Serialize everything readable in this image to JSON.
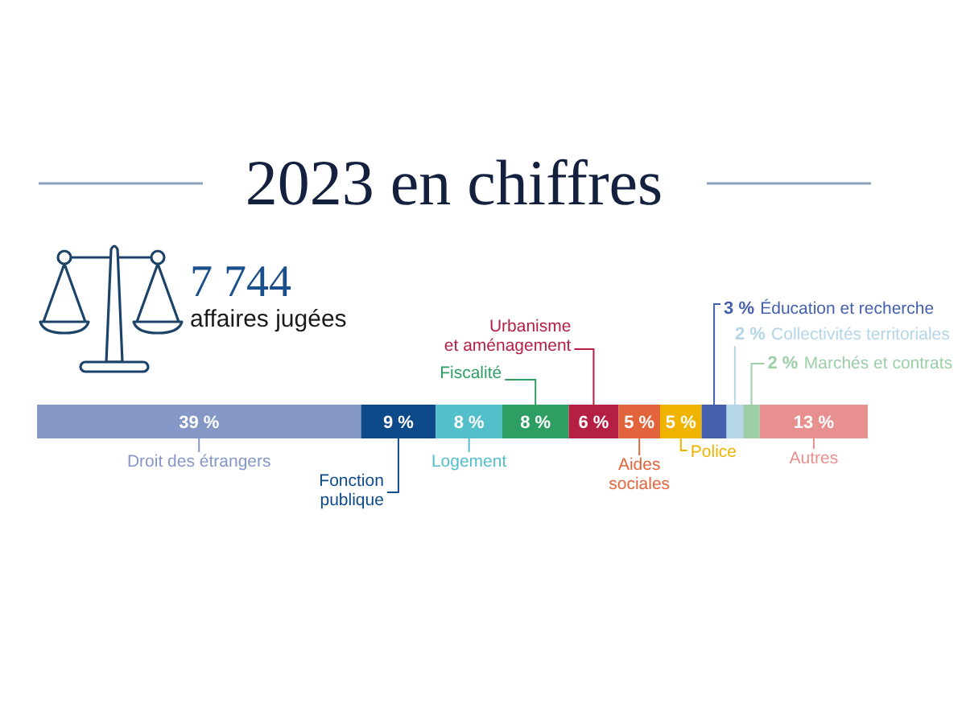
{
  "chart_data": {
    "type": "bar",
    "orientation": "horizontal",
    "stacked": true,
    "title": "2023 en chiffres",
    "annotations": [
      "7 744",
      "affaires jugées"
    ],
    "categories": [
      null
    ],
    "xlim": [
      0,
      100
    ],
    "series": [
      {
        "name": "Droit des étrangers",
        "color": "#8597c7",
        "values": [
          39
        ],
        "value_labels": [
          "39 %"
        ]
      },
      {
        "name": "Fonction publique",
        "color": "#0d4a8a",
        "values": [
          9
        ],
        "value_labels": [
          "9 %"
        ]
      },
      {
        "name": "Logement",
        "color": "#52bfca",
        "values": [
          8
        ],
        "value_labels": [
          "8 %"
        ]
      },
      {
        "name": "Fiscalité",
        "color": "#2e9e62",
        "values": [
          8
        ],
        "value_labels": [
          "8 %"
        ]
      },
      {
        "name": "Urbanisme et aménagement",
        "color": "#b51f44",
        "values": [
          6
        ],
        "value_labels": [
          "6 %"
        ]
      },
      {
        "name": "Aides sociales",
        "color": "#e2643c",
        "values": [
          5
        ],
        "value_labels": [
          "5 %"
        ]
      },
      {
        "name": "Police",
        "color": "#f0b400",
        "values": [
          5
        ],
        "value_labels": [
          "5 %"
        ]
      },
      {
        "name": "Éducation et recherche",
        "color": "#4560ad",
        "values": [
          3
        ],
        "value_labels": [
          "3 %"
        ]
      },
      {
        "name": "Collectivités territoriales",
        "color": "#b4d6e8",
        "values": [
          2
        ],
        "value_labels": [
          "2 %"
        ]
      },
      {
        "name": "Marchés et contrats",
        "color": "#9ccfa8",
        "values": [
          2
        ],
        "value_labels": [
          "2 %"
        ]
      },
      {
        "name": "Autres",
        "color": "#e8908f",
        "values": [
          13
        ],
        "value_labels": [
          "13 %"
        ]
      }
    ]
  }
}
